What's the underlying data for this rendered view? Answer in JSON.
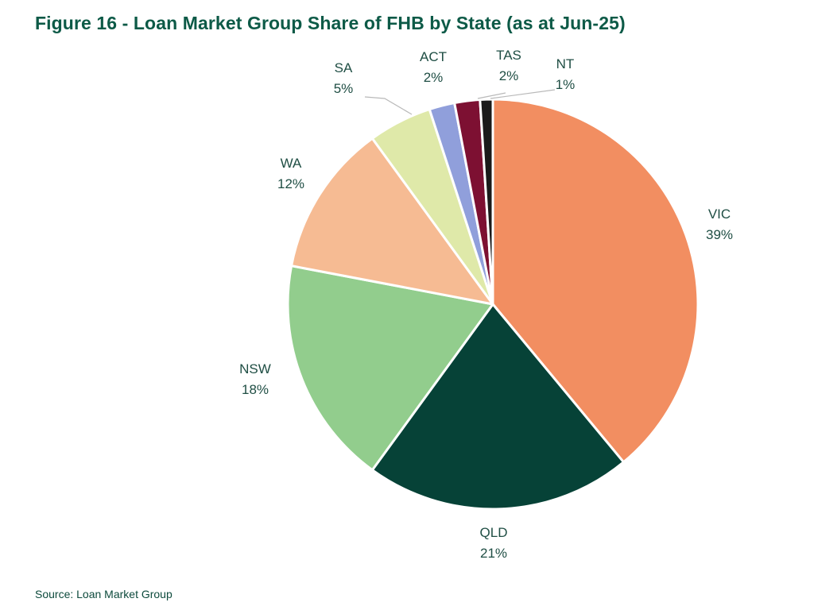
{
  "title": "Figure 16 - Loan Market Group Share of FHB by State (as at Jun-25)",
  "source": "Source: Loan Market Group",
  "chart_data": {
    "type": "pie",
    "title": "Figure 16 - Loan Market Group Share of FHB by State (as at Jun-25)",
    "start": "12 o'clock",
    "direction": "clockwise",
    "slices": [
      {
        "key": "vic",
        "label": "VIC",
        "value": 39,
        "display": "39%",
        "color": "#f28e61"
      },
      {
        "key": "qld",
        "label": "QLD",
        "value": 21,
        "display": "21%",
        "color": "#064237"
      },
      {
        "key": "nsw",
        "label": "NSW",
        "value": 18,
        "display": "18%",
        "color": "#92cd8d"
      },
      {
        "key": "wa",
        "label": "WA",
        "value": 12,
        "display": "12%",
        "color": "#f6bb93"
      },
      {
        "key": "sa",
        "label": "SA",
        "value": 5,
        "display": "5%",
        "color": "#dfe9a9"
      },
      {
        "key": "act",
        "label": "ACT",
        "value": 2,
        "display": "2%",
        "color": "#909fdb"
      },
      {
        "key": "tas",
        "label": "TAS",
        "value": 2,
        "display": "2%",
        "color": "#7d1032"
      },
      {
        "key": "nt",
        "label": "NT",
        "value": 1,
        "display": "1%",
        "color": "#1a1a1a"
      }
    ]
  }
}
